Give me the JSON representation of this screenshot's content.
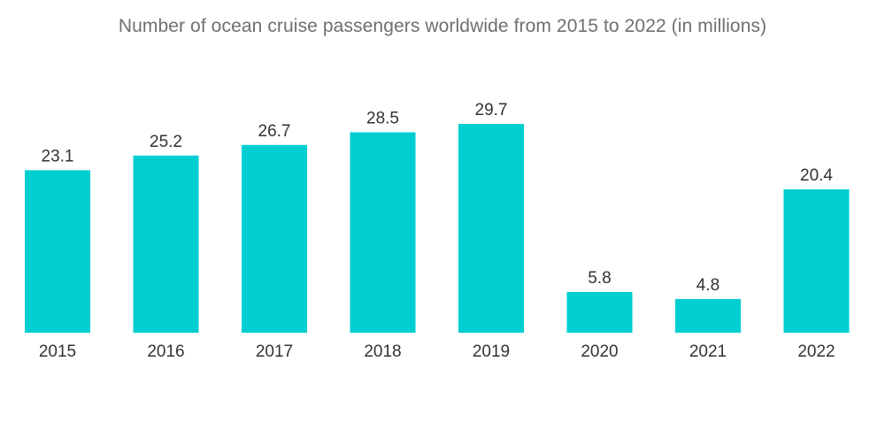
{
  "chart_data": {
    "type": "bar",
    "title": "Number of ocean cruise passengers worldwide from 2015 to 2022 (in millions)",
    "categories": [
      "2015",
      "2016",
      "2017",
      "2018",
      "2019",
      "2020",
      "2021",
      "2022"
    ],
    "values": [
      23.1,
      25.2,
      26.7,
      28.5,
      29.7,
      5.8,
      4.8,
      20.4
    ],
    "value_labels": [
      "23.1",
      "25.2",
      "26.7",
      "28.5",
      "29.7",
      "5.8",
      "4.8",
      "20.4"
    ],
    "xlabel": "",
    "ylabel": "",
    "ylim": [
      0,
      29.7
    ],
    "grid": false,
    "bar_color": "#00CED1"
  }
}
